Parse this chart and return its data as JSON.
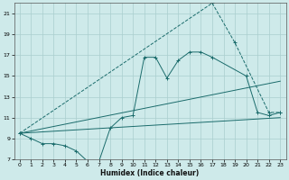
{
  "xlabel": "Humidex (Indice chaleur)",
  "bg_color": "#ceeaea",
  "line_color": "#1a6b6b",
  "grid_color": "#aacece",
  "xlim": [
    -0.5,
    23.5
  ],
  "ylim": [
    7,
    22
  ],
  "yticks": [
    7,
    9,
    11,
    13,
    15,
    17,
    19,
    21
  ],
  "xticks": [
    0,
    1,
    2,
    3,
    4,
    5,
    6,
    7,
    8,
    9,
    10,
    11,
    12,
    13,
    14,
    15,
    16,
    17,
    18,
    19,
    20,
    21,
    22,
    23
  ],
  "series": [
    {
      "x": [
        0,
        1,
        2,
        3,
        4,
        5,
        6,
        7,
        8,
        9,
        10,
        11,
        12,
        13,
        14,
        15,
        16,
        17,
        20,
        21,
        22,
        23
      ],
      "y": [
        9.5,
        9.0,
        8.5,
        8.5,
        8.3,
        7.8,
        6.8,
        6.8,
        10.0,
        11.0,
        11.2,
        16.8,
        16.8,
        14.8,
        16.5,
        17.3,
        17.3,
        16.8,
        15.0,
        11.5,
        11.2,
        11.5
      ],
      "marker": true,
      "linestyle": "-"
    },
    {
      "x": [
        0,
        23
      ],
      "y": [
        9.5,
        11.0
      ],
      "marker": false,
      "linestyle": "-"
    },
    {
      "x": [
        0,
        23
      ],
      "y": [
        9.5,
        14.5
      ],
      "marker": false,
      "linestyle": "-"
    },
    {
      "x": [
        0,
        17,
        19,
        22,
        23
      ],
      "y": [
        9.5,
        22.0,
        18.2,
        11.5,
        11.5
      ],
      "marker": true,
      "linestyle": "--"
    }
  ]
}
